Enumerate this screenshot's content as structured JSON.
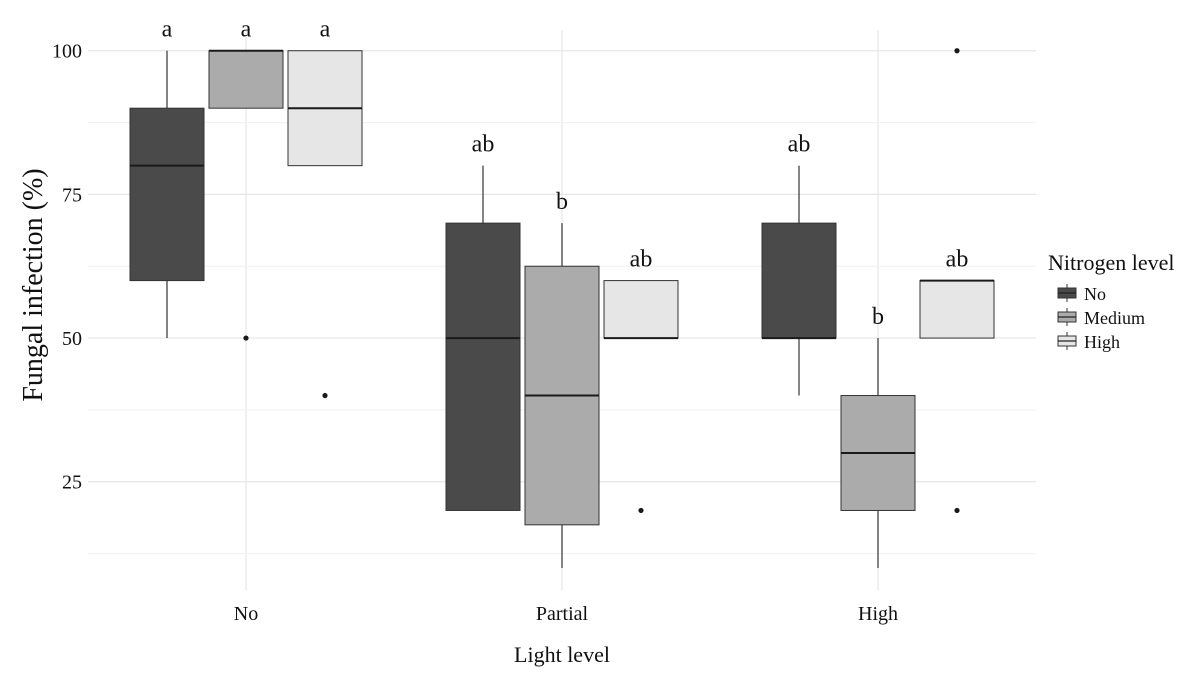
{
  "chart_data": {
    "type": "boxplot",
    "xlabel": "Light level",
    "ylabel": "Fungal infection (%)",
    "categories": [
      "No",
      "Partial",
      "High"
    ],
    "yticks": [
      25,
      50,
      75,
      100
    ],
    "ylim": [
      5,
      105
    ],
    "grid": true,
    "legend": {
      "title": "Nitrogen level",
      "position": "right",
      "entries": [
        "No",
        "Medium",
        "High"
      ]
    },
    "series": [
      {
        "name": "No",
        "color": "#4a4a4a",
        "boxes": [
          {
            "whisker_low": 50,
            "q1": 60,
            "median": 80,
            "q3": 90,
            "whisker_high": 100,
            "outliers": [],
            "label": "a"
          },
          {
            "whisker_low": 20,
            "q1": 20,
            "median": 50,
            "q3": 70,
            "whisker_high": 80,
            "outliers": [],
            "label": "ab"
          },
          {
            "whisker_low": 40,
            "q1": 50,
            "median": 50,
            "q3": 70,
            "whisker_high": 80,
            "outliers": [],
            "label": "ab"
          }
        ]
      },
      {
        "name": "Medium",
        "color": "#ababab",
        "boxes": [
          {
            "whisker_low": 90,
            "q1": 90,
            "median": 100,
            "q3": 100,
            "whisker_high": 100,
            "outliers": [
              50
            ],
            "label": "a"
          },
          {
            "whisker_low": 10,
            "q1": 17.5,
            "median": 40,
            "q3": 62.5,
            "whisker_high": 70,
            "outliers": [],
            "label": "b"
          },
          {
            "whisker_low": 10,
            "q1": 20,
            "median": 30,
            "q3": 40,
            "whisker_high": 50,
            "outliers": [],
            "label": "b"
          }
        ]
      },
      {
        "name": "High",
        "color": "#e6e6e6",
        "boxes": [
          {
            "whisker_low": 80,
            "q1": 80,
            "median": 90,
            "q3": 100,
            "whisker_high": 100,
            "outliers": [
              40
            ],
            "label": "a"
          },
          {
            "whisker_low": 50,
            "q1": 50,
            "median": 50,
            "q3": 60,
            "whisker_high": 60,
            "outliers": [
              20
            ],
            "label": "ab"
          },
          {
            "whisker_low": 50,
            "q1": 50,
            "median": 60,
            "q3": 60,
            "whisker_high": 60,
            "outliers": [
              100,
              20
            ],
            "label": "ab"
          }
        ]
      }
    ]
  }
}
